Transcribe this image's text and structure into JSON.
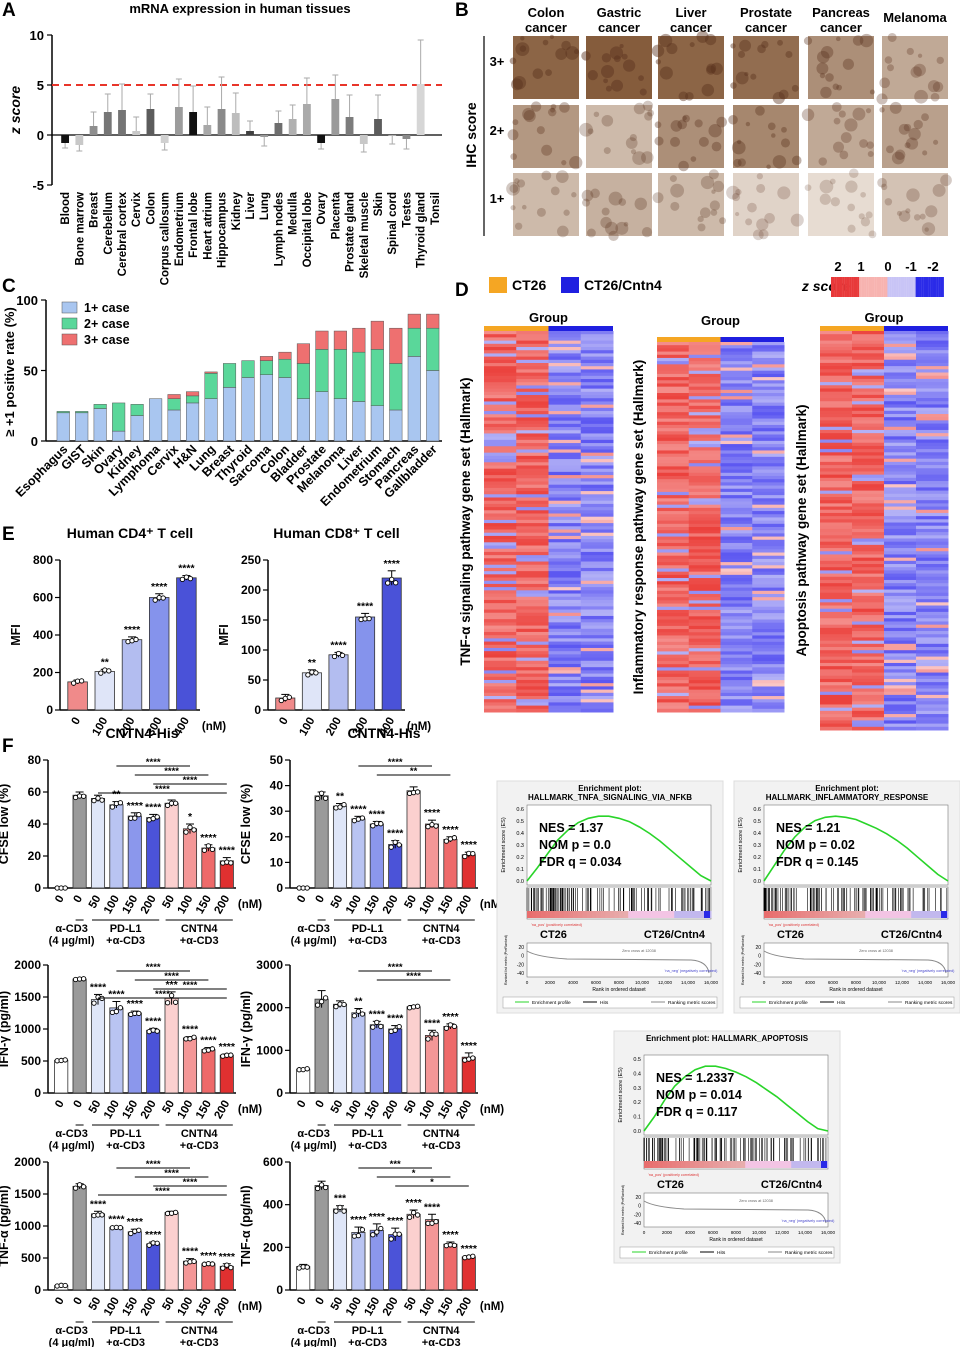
{
  "panels": {
    "A": "A",
    "B": "B",
    "C": "C",
    "D": "D",
    "E": "E",
    "F": "F"
  },
  "colors": {
    "ct26": "#f5a623",
    "cntn4": "#1f1fe0",
    "red_line": "#e8352a",
    "one_plus": "#a9c6f0",
    "two_plus": "#5ad79a",
    "three_plus": "#ee7070",
    "gsea_green": "#29d429"
  },
  "chart_data": [
    {
      "id": "A",
      "type": "bar",
      "title": "mRNA expression in human tissues",
      "ylabel": "z score",
      "ylim": [
        -5,
        10
      ],
      "yticks": [
        "10",
        "5",
        "0",
        "-5"
      ],
      "threshold": 5,
      "categories": [
        "Blood",
        "Bone marrow",
        "Breast",
        "Cerebellum",
        "Cerebral cortex",
        "Cervix",
        "Colon",
        "Corpus callosum",
        "Endometrium",
        "Frontal lobe",
        "Heart atrium",
        "Hippocampus",
        "Kidney",
        "Liver",
        "Lung",
        "Lymph nodes",
        "Medulla",
        "Occipital lobe",
        "Ovary",
        "Placenta",
        "Prostate gland",
        "Skeletal muscle",
        "Skin",
        "Spinal cord",
        "Testes",
        "Thyroid gland",
        "Tonsil"
      ],
      "values": [
        -0.8,
        -1.0,
        0.9,
        2.3,
        2.5,
        0.4,
        2.6,
        -0.8,
        2.8,
        2.3,
        1.0,
        2.6,
        2.2,
        0.4,
        -0.2,
        1.2,
        1.6,
        3.1,
        -0.8,
        3.6,
        1.8,
        -0.9,
        1.6,
        -0.1,
        -0.4,
        5.1,
        0
      ],
      "errors": [
        0.5,
        0.6,
        1.4,
        1.8,
        2.6,
        1.4,
        1.5,
        0.7,
        2.8,
        2.6,
        1.8,
        3.2,
        2.0,
        1.0,
        0.9,
        1.2,
        1.4,
        2.6,
        0.6,
        2.4,
        2.2,
        0.8,
        2.4,
        0.8,
        1.0,
        4.4,
        0
      ],
      "shades": [
        "#111111",
        "#c8c8c8",
        "#8e8e8e",
        "#767676",
        "#747474",
        "#c8c8c8",
        "#5c5c5c",
        "#d0d0d0",
        "#9c9c9c",
        "#111111",
        "#a8a8a8",
        "#8a8a8a",
        "#bdbdbd",
        "#404040",
        "#9a9a9a",
        "#6e6e6e",
        "#b0b0b0",
        "#aaaaaa",
        "#111111",
        "#9a9a9a",
        "#7c7c7c",
        "#c8c8c8",
        "#5c5c5c",
        "#b0b0b0",
        "#8a8a8a",
        "#d6d6d6",
        "#ffffff"
      ]
    },
    {
      "id": "B",
      "type": "table",
      "ylabel": "IHC score",
      "columns": [
        "Colon cancer",
        "Gastric cancer",
        "Liver cancer",
        "Prostate cancer",
        "Pancreas cancer",
        "Melanoma"
      ],
      "rows": [
        "3+",
        "2+",
        "1+"
      ]
    },
    {
      "id": "C",
      "type": "bar",
      "stacked": true,
      "ylabel": "≥ +1 positive rate (%)",
      "ylim": [
        0,
        100
      ],
      "yticks": [
        "100",
        "50",
        "0"
      ],
      "categories": [
        "Esophagus",
        "GIST",
        "Skin",
        "Ovary",
        "Kidney",
        "Lymphoma",
        "Cervix",
        "H&N",
        "Lung",
        "Breast",
        "Thyroid",
        "Sarcoma",
        "Colon",
        "Bladder",
        "Prostate",
        "Melanoma",
        "Liver",
        "Endometrium",
        "Stomach",
        "Pancreas",
        "Gallbladder"
      ],
      "series": [
        {
          "name": "1+ case",
          "values": [
            20,
            20,
            23,
            7,
            18,
            30,
            22,
            27,
            30,
            38,
            45,
            47,
            45,
            30,
            35,
            30,
            28,
            25,
            22,
            60,
            50
          ]
        },
        {
          "name": "2+ case",
          "values": [
            1,
            1,
            3,
            20,
            8,
            0,
            8,
            5,
            18,
            17,
            12,
            10,
            13,
            25,
            30,
            35,
            35,
            40,
            33,
            20,
            30
          ]
        },
        {
          "name": "3+ case",
          "values": [
            0,
            0,
            0,
            0,
            0,
            0,
            3,
            3,
            1,
            0,
            0,
            3,
            5,
            14,
            13,
            13,
            17,
            20,
            25,
            10,
            10
          ]
        }
      ]
    },
    {
      "id": "D",
      "type": "heatmap",
      "group_label": "Group",
      "legend": [
        "CT26",
        "CT26/Cntn4"
      ],
      "scale_label": "z score",
      "scale_ticks": [
        "2",
        "1",
        "0",
        "-1",
        "-2"
      ],
      "heatmaps": [
        {
          "ylabel": "TNF-α signaling pathway gene set (Hallmark)"
        },
        {
          "ylabel": "Inflammatory response pathway gene set (Hallmark)"
        },
        {
          "ylabel": "Apoptosis pathway gene set (Hallmark)"
        }
      ]
    },
    {
      "id": "E1",
      "type": "bar",
      "title": "Human CD4⁺ T cell",
      "ylabel": "MFI",
      "ylim": [
        0,
        800
      ],
      "yticks": [
        "800",
        "600",
        "400",
        "200",
        "0"
      ],
      "categories": [
        "0",
        "100",
        "200",
        "300",
        "400"
      ],
      "unit": "(nM)",
      "values": [
        150,
        205,
        375,
        600,
        705
      ],
      "errors": [
        10,
        12,
        15,
        20,
        12
      ],
      "stars": [
        "",
        "**",
        "****",
        "****",
        "****"
      ]
    },
    {
      "id": "E2",
      "type": "bar",
      "title": "Human CD8⁺ T cell",
      "ylabel": "MFI",
      "ylim": [
        0,
        250
      ],
      "yticks": [
        "250",
        "200",
        "150",
        "100",
        "50",
        "0"
      ],
      "categories": [
        "0",
        "100",
        "200",
        "300",
        "400"
      ],
      "unit": "(nM)",
      "values": [
        20,
        62,
        92,
        155,
        220
      ],
      "errors": [
        6,
        5,
        4,
        6,
        12
      ],
      "stars": [
        "",
        "**",
        "****",
        "****",
        "****"
      ]
    },
    {
      "id": "F1",
      "type": "bar",
      "title": "CNTN4-His",
      "ylabel": "CFSE low (%)",
      "ylim": [
        0,
        80
      ],
      "yticks": [
        "80",
        "60",
        "40",
        "20",
        "0"
      ],
      "categories": [
        "0",
        "0",
        "50",
        "100",
        "150",
        "200",
        "50",
        "100",
        "150",
        "200"
      ],
      "unit": "(nM)",
      "values": [
        0,
        58,
        56,
        52,
        45,
        44,
        53,
        37,
        25,
        17
      ],
      "errors": [
        0,
        2,
        2,
        2,
        2,
        2,
        2,
        3,
        2,
        2
      ],
      "stars": [
        "",
        "",
        "",
        "**",
        "****",
        "****",
        "",
        "*",
        "****",
        "****"
      ],
      "group_labels": [
        "α-CD3\n(4 μg/ml)",
        "PD-L1\n+α-CD3",
        "CNTN4\n+α-CD3"
      ],
      "brackets": [
        "****",
        "****",
        "****",
        "****"
      ]
    },
    {
      "id": "F2",
      "type": "bar",
      "title": "CNTN4-His",
      "ylabel": "CFSE low (%)",
      "ylim": [
        0,
        50
      ],
      "yticks": [
        "50",
        "40",
        "30",
        "20",
        "10",
        "0"
      ],
      "categories": [
        "0",
        "0",
        "50",
        "100",
        "150",
        "200",
        "50",
        "100",
        "150",
        "200"
      ],
      "unit": "(nM)",
      "values": [
        0,
        36,
        32,
        27,
        25,
        17,
        38,
        25,
        19,
        13
      ],
      "errors": [
        0,
        1.5,
        1,
        1,
        1,
        1.5,
        1.5,
        1.5,
        1,
        1
      ],
      "stars": [
        "",
        "",
        "**",
        "****",
        "****",
        "****",
        "",
        "****",
        "****",
        "****"
      ],
      "group_labels": [
        "α-CD3\n(4 μg/ml)",
        "PD-L1\n+α-CD3",
        "CNTN4\n+α-CD3"
      ],
      "brackets": [
        "****",
        "**"
      ]
    },
    {
      "id": "F3",
      "type": "bar",
      "ylabel": "IFN-γ (pg/ml)",
      "ylim": [
        0,
        2000
      ],
      "yticks": [
        "2000",
        "1500",
        "1000",
        "500",
        "0"
      ],
      "categories": [
        "0",
        "0",
        "50",
        "100",
        "150",
        "200",
        "50",
        "100",
        "150",
        "200"
      ],
      "unit": "(nM)",
      "values": [
        510,
        1780,
        1460,
        1330,
        1250,
        980,
        1480,
        860,
        680,
        590
      ],
      "errors": [
        10,
        10,
        80,
        100,
        30,
        30,
        100,
        20,
        30,
        20
      ],
      "stars": [
        "",
        "",
        "****",
        "****",
        "****",
        "****",
        "***",
        "****",
        "****",
        "****"
      ],
      "group_labels": [
        "α-CD3\n(4 μg/ml)",
        "PD-L1\n+α-CD3",
        "CNTN4\n+α-CD3"
      ],
      "brackets": [
        "****",
        "****",
        "****",
        "****"
      ]
    },
    {
      "id": "F4",
      "type": "bar",
      "ylabel": "IFN-γ (pg/ml)",
      "ylim": [
        0,
        3000
      ],
      "yticks": [
        "3000",
        "2000",
        "1000",
        "0"
      ],
      "categories": [
        "0",
        "0",
        "50",
        "100",
        "150",
        "200",
        "50",
        "100",
        "150",
        "200"
      ],
      "unit": "(nM)",
      "values": [
        560,
        2200,
        2080,
        1880,
        1600,
        1500,
        2020,
        1350,
        1560,
        840
      ],
      "errors": [
        20,
        200,
        80,
        100,
        80,
        80,
        30,
        120,
        60,
        100
      ],
      "stars": [
        "",
        "",
        "",
        "**",
        "****",
        "****",
        "",
        "****",
        "****",
        "****"
      ],
      "group_labels": [
        "α-CD3\n(4 μg/ml)",
        "PD-L1\n+α-CD3",
        "CNTN4\n+α-CD3"
      ],
      "brackets": [
        "****",
        "****"
      ]
    },
    {
      "id": "F5",
      "type": "bar",
      "ylabel": "TNF-α (pg/ml)",
      "ylim": [
        0,
        2000
      ],
      "yticks": [
        "2000",
        "1500",
        "1000",
        "500",
        "0"
      ],
      "categories": [
        "0",
        "0",
        "50",
        "100",
        "150",
        "200",
        "50",
        "100",
        "150",
        "200"
      ],
      "unit": "(nM)",
      "values": [
        70,
        1620,
        1190,
        980,
        910,
        720,
        1210,
        450,
        410,
        370
      ],
      "errors": [
        10,
        40,
        40,
        10,
        40,
        30,
        20,
        40,
        10,
        40
      ],
      "stars": [
        "",
        "",
        "****",
        "****",
        "****",
        "****",
        "",
        "****",
        "****",
        "****"
      ],
      "group_labels": [
        "α-CD3\n(4 μg/ml)",
        "PD-L1\n+α-CD3",
        "CNTN4\n+α-CD3"
      ],
      "brackets": [
        "****",
        "****",
        "****",
        "****"
      ]
    },
    {
      "id": "F6",
      "type": "bar",
      "ylabel": "TNF-α (pg/ml)",
      "ylim": [
        0,
        600
      ],
      "yticks": [
        "600",
        "400",
        "200",
        "0"
      ],
      "categories": [
        "0",
        "0",
        "50",
        "100",
        "150",
        "200",
        "50",
        "100",
        "150",
        "200"
      ],
      "unit": "(nM)",
      "values": [
        110,
        490,
        380,
        270,
        280,
        260,
        355,
        330,
        215,
        155
      ],
      "errors": [
        10,
        20,
        15,
        25,
        30,
        30,
        20,
        25,
        10,
        5
      ],
      "stars": [
        "",
        "",
        "***",
        "****",
        "****",
        "****",
        "****",
        "****",
        "****",
        "****"
      ],
      "group_labels": [
        "α-CD3\n(4 μg/ml)",
        "PD-L1\n+α-CD3",
        "CNTN4\n+α-CD3"
      ],
      "brackets": [
        "***",
        "*",
        "*"
      ]
    },
    {
      "id": "G1",
      "type": "line",
      "title": "Enrichment plot:\nHALLMARK_TNFA_SIGNALING_VIA_NFKB",
      "nes": "NES = 1.37",
      "nom": "NOM p = 0.0",
      "fdr": "FDR q = 0.034",
      "left": "CT26",
      "right": "CT26/Cntn4",
      "ylabel": "Enrichment score (ES)",
      "xlabel": "Rank in ordered dataset",
      "ylabel2": "Ranked list metric (PreRanked)",
      "pos_label": "'na_pos' (positively correlated)",
      "neg_label": "'na_neg' (negatively correlated)",
      "zero_label": "Zero cross at 12038",
      "legend": [
        "Enrichment profile",
        "Hits",
        "Ranking metric scores"
      ],
      "yticks": [
        "0.6",
        "0.5",
        "0.4",
        "0.3",
        "0.2",
        "0.1",
        "0.0"
      ],
      "xticks": [
        "0",
        "2000",
        "4000",
        "6000",
        "8000",
        "10,000",
        "12,000",
        "14,000",
        "16,000"
      ],
      "yticks2": [
        "20",
        "0",
        "-20",
        "-40"
      ],
      "es_profile": [
        0,
        0.12,
        0.25,
        0.38,
        0.47,
        0.54,
        0.58,
        0.6,
        0.6,
        0.58,
        0.55,
        0.5,
        0.44,
        0.37,
        0.29,
        0.21,
        0.13,
        0.05,
        0
      ]
    },
    {
      "id": "G2",
      "type": "line",
      "title": "Enrichment plot:\nHALLMARK_INFLAMMATORY_RESPONSE",
      "nes": "NES = 1.21",
      "nom": "NOM p = 0.02",
      "fdr": "FDR q = 0.145",
      "left": "CT26",
      "right": "CT26/Cntn4",
      "ylabel": "Enrichment score (ES)",
      "xlabel": "Rank in ordered dataset",
      "ylabel2": "Ranked list metric (PreRanked)",
      "pos_label": "'na_pos' (positively correlated)",
      "neg_label": "'na_neg' (negatively correlated)",
      "zero_label": "Zero cross at 12038",
      "legend": [
        "Enrichment profile",
        "Hits",
        "Ranking metric scores"
      ],
      "yticks": [
        "0.6",
        "0.5",
        "0.4",
        "0.3",
        "0.2",
        "0.1",
        "0.0"
      ],
      "xticks": [
        "0",
        "2000",
        "4000",
        "6000",
        "8000",
        "10,000",
        "12,000",
        "14,000",
        "16,000"
      ],
      "yticks2": [
        "20",
        "0",
        "-20",
        "-40"
      ],
      "es_profile": [
        0,
        0.14,
        0.28,
        0.4,
        0.49,
        0.55,
        0.58,
        0.59,
        0.58,
        0.56,
        0.52,
        0.48,
        0.43,
        0.37,
        0.3,
        0.22,
        0.14,
        0.06,
        0
      ]
    },
    {
      "id": "G3",
      "type": "line",
      "title": "Enrichment plot: HALLMARK_APOPTOSIS",
      "nes": "NES = 1.2337",
      "nom": "NOM p = 0.014",
      "fdr": "FDR q = 0.117",
      "left": "CT26",
      "right": "CT26/Cntn4",
      "ylabel": "Enrichment score (ES)",
      "xlabel": "Rank in ordered dataset",
      "ylabel2": "Ranked list metric (PreRanked)",
      "pos_label": "'na_pos' (positively correlated)",
      "neg_label": "'na_neg' (negatively correlated)",
      "zero_label": "Zero cross at 12038",
      "legend": [
        "Enrichment profile",
        "Hits",
        "Ranking metric scores"
      ],
      "yticks": [
        "0.5",
        "0.4",
        "0.3",
        "0.2",
        "0.1",
        "0.0"
      ],
      "xticks": [
        "0",
        "2000",
        "4000",
        "6000",
        "8000",
        "10,000",
        "12,000",
        "14,000",
        "16,000"
      ],
      "yticks2": [
        "20",
        "0",
        "-20",
        "-40"
      ],
      "es_profile": [
        0,
        0.12,
        0.26,
        0.38,
        0.46,
        0.52,
        0.55,
        0.55,
        0.53,
        0.5,
        0.46,
        0.41,
        0.35,
        0.29,
        0.22,
        0.15,
        0.08,
        0.02,
        0
      ]
    }
  ]
}
